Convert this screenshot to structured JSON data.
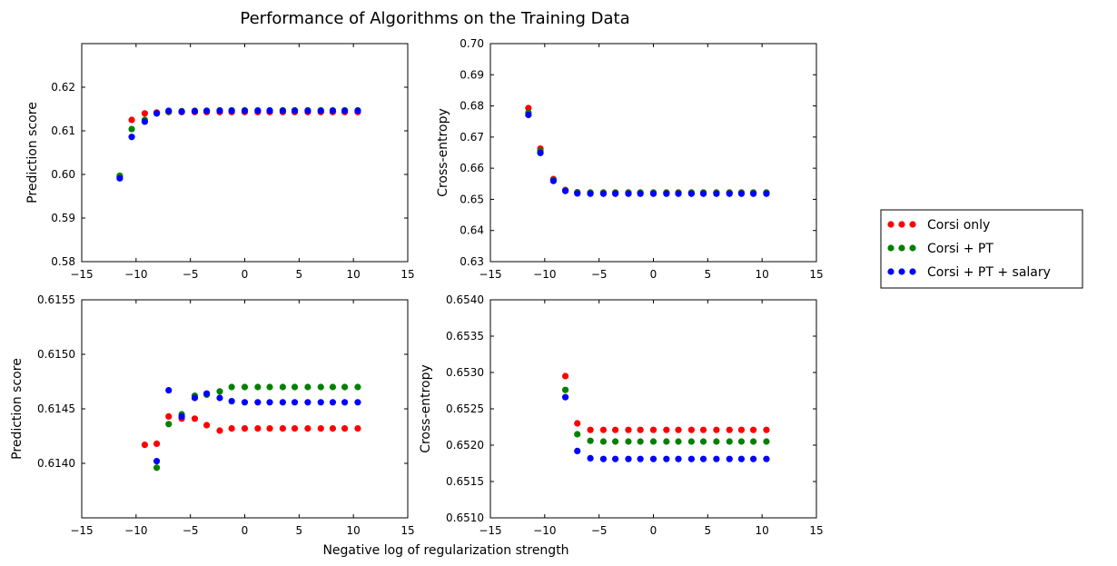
{
  "figure": {
    "title": "Performance of Algorithms on the Training Data",
    "shared_xlabel": "Negative log of regularization strength"
  },
  "legend": {
    "placement": "right, outside subplots",
    "items": [
      {
        "label": "Corsi only",
        "color": "#ff0000"
      },
      {
        "label": "Corsi + PT",
        "color": "#008000"
      },
      {
        "label": "Corsi + PT + salary",
        "color": "#0000ff"
      }
    ]
  },
  "chart_data": [
    {
      "type": "scatter",
      "position": "top-left",
      "ylabel": "Prediction score",
      "xlim": [
        -15,
        15
      ],
      "ylim": [
        0.58,
        0.63
      ],
      "xticks": [
        -15,
        -10,
        -5,
        0,
        5,
        10,
        15
      ],
      "xtick_labels": [
        "−15",
        "−10",
        "−5",
        "0",
        "5",
        "10",
        "15"
      ],
      "yticks": [
        0.58,
        0.59,
        0.6,
        0.61,
        0.62
      ],
      "ytick_labels": [
        "0.58",
        "0.59",
        "0.60",
        "0.61",
        "0.62"
      ],
      "series": [
        {
          "name": "Corsi only",
          "color": "#ff0000",
          "x": [
            -11.5,
            -10.4,
            -9.2,
            -8.1,
            -7.0,
            -5.8,
            -4.6,
            -3.5,
            -2.3,
            -1.2,
            0.0,
            1.2,
            2.3,
            3.5,
            4.6,
            5.8,
            7.0,
            8.1,
            9.2,
            10.4
          ],
          "y": [
            0.5995,
            0.6125,
            0.614,
            0.6142,
            0.6143,
            0.6143,
            0.6143,
            0.6143,
            0.6143,
            0.6143,
            0.6143,
            0.6143,
            0.6143,
            0.6143,
            0.6143,
            0.6143,
            0.6143,
            0.6143,
            0.6143,
            0.6143
          ]
        },
        {
          "name": "Corsi + PT",
          "color": "#008000",
          "x": [
            -11.5,
            -10.4,
            -9.2,
            -8.1,
            -7.0,
            -5.8,
            -4.6,
            -3.5,
            -2.3,
            -1.2,
            0.0,
            1.2,
            2.3,
            3.5,
            4.6,
            5.8,
            7.0,
            8.1,
            9.2,
            10.4
          ],
          "y": [
            0.5997,
            0.6104,
            0.6125,
            0.614,
            0.6144,
            0.6145,
            0.6146,
            0.6146,
            0.6147,
            0.6147,
            0.6147,
            0.6147,
            0.6147,
            0.6147,
            0.6147,
            0.6147,
            0.6147,
            0.6147,
            0.6147,
            0.6147
          ]
        },
        {
          "name": "Corsi + PT + salary",
          "color": "#0000ff",
          "x": [
            -11.5,
            -10.4,
            -9.2,
            -8.1,
            -7.0,
            -5.8,
            -4.6,
            -3.5,
            -2.3,
            -1.2,
            0.0,
            1.2,
            2.3,
            3.5,
            4.6,
            5.8,
            7.0,
            8.1,
            9.2,
            10.4
          ],
          "y": [
            0.5991,
            0.6086,
            0.6121,
            0.614,
            0.6146,
            0.6144,
            0.6145,
            0.6146,
            0.6146,
            0.6146,
            0.6146,
            0.6146,
            0.6146,
            0.6146,
            0.6146,
            0.6146,
            0.6146,
            0.6146,
            0.6146,
            0.6146
          ]
        }
      ]
    },
    {
      "type": "scatter",
      "position": "top-right",
      "ylabel": "Cross-entropy",
      "xlim": [
        -15,
        15
      ],
      "ylim": [
        0.63,
        0.7
      ],
      "xticks": [
        -15,
        -10,
        -5,
        0,
        5,
        10,
        15
      ],
      "xtick_labels": [
        "−15",
        "−10",
        "−5",
        "0",
        "5",
        "10",
        "15"
      ],
      "yticks": [
        0.63,
        0.64,
        0.65,
        0.66,
        0.67,
        0.68,
        0.69,
        0.7
      ],
      "ytick_labels": [
        "0.63",
        "0.64",
        "0.65",
        "0.66",
        "0.67",
        "0.68",
        "0.69",
        "0.70"
      ],
      "series": [
        {
          "name": "Corsi only",
          "color": "#ff0000",
          "x": [
            -11.5,
            -10.4,
            -9.2,
            -8.1,
            -7.0,
            -5.8,
            -4.6,
            -3.5,
            -2.3,
            -1.2,
            0.0,
            1.2,
            2.3,
            3.5,
            4.6,
            5.8,
            7.0,
            8.1,
            9.2,
            10.4
          ],
          "y": [
            0.6793,
            0.6663,
            0.6565,
            0.653,
            0.6523,
            0.6522,
            0.6522,
            0.6522,
            0.6522,
            0.6522,
            0.6522,
            0.6522,
            0.6522,
            0.6522,
            0.6522,
            0.6522,
            0.6522,
            0.6522,
            0.6522,
            0.6522
          ]
        },
        {
          "name": "Corsi + PT",
          "color": "#008000",
          "x": [
            -11.5,
            -10.4,
            -9.2,
            -8.1,
            -7.0,
            -5.8,
            -4.6,
            -3.5,
            -2.3,
            -1.2,
            0.0,
            1.2,
            2.3,
            3.5,
            4.6,
            5.8,
            7.0,
            8.1,
            9.2,
            10.4
          ],
          "y": [
            0.6778,
            0.6655,
            0.6562,
            0.6528,
            0.6522,
            0.6521,
            0.6521,
            0.6521,
            0.6521,
            0.6521,
            0.6521,
            0.6521,
            0.6521,
            0.6521,
            0.6521,
            0.6521,
            0.6521,
            0.6521,
            0.6521,
            0.6521
          ]
        },
        {
          "name": "Corsi + PT + salary",
          "color": "#0000ff",
          "x": [
            -11.5,
            -10.4,
            -9.2,
            -8.1,
            -7.0,
            -5.8,
            -4.6,
            -3.5,
            -2.3,
            -1.2,
            0.0,
            1.2,
            2.3,
            3.5,
            4.6,
            5.8,
            7.0,
            8.1,
            9.2,
            10.4
          ],
          "y": [
            0.6771,
            0.6649,
            0.6559,
            0.6527,
            0.6519,
            0.6518,
            0.6518,
            0.6518,
            0.6518,
            0.6518,
            0.6518,
            0.6518,
            0.6518,
            0.6518,
            0.6518,
            0.6518,
            0.6518,
            0.6518,
            0.6518,
            0.6518
          ]
        }
      ]
    },
    {
      "type": "scatter",
      "position": "bottom-left",
      "ylabel": "Prediction score",
      "xlim": [
        -15,
        15
      ],
      "ylim": [
        0.6135,
        0.6155
      ],
      "xticks": [
        -15,
        -10,
        -5,
        0,
        5,
        10,
        15
      ],
      "xtick_labels": [
        "−15",
        "−10",
        "−5",
        "0",
        "5",
        "10",
        "15"
      ],
      "yticks": [
        0.614,
        0.6145,
        0.615,
        0.6155
      ],
      "ytick_labels": [
        "0.6140",
        "0.6145",
        "0.6150",
        "0.6155"
      ],
      "series": [
        {
          "name": "Corsi only",
          "color": "#ff0000",
          "x": [
            -9.2,
            -8.1,
            -7.0,
            -5.8,
            -4.6,
            -3.5,
            -2.3,
            -1.2,
            0.0,
            1.2,
            2.3,
            3.5,
            4.6,
            5.8,
            7.0,
            8.1,
            9.2,
            10.4
          ],
          "y": [
            0.61417,
            0.61418,
            0.61443,
            0.61441,
            0.61441,
            0.61435,
            0.6143,
            0.61432,
            0.61432,
            0.61432,
            0.61432,
            0.61432,
            0.61432,
            0.61432,
            0.61432,
            0.61432,
            0.61432,
            0.61432
          ]
        },
        {
          "name": "Corsi + PT",
          "color": "#008000",
          "x": [
            -8.1,
            -7.0,
            -5.8,
            -4.6,
            -3.5,
            -2.3,
            -1.2,
            0.0,
            1.2,
            2.3,
            3.5,
            4.6,
            5.8,
            7.0,
            8.1,
            9.2,
            10.4
          ],
          "y": [
            0.61396,
            0.61436,
            0.61445,
            0.61462,
            0.61463,
            0.61466,
            0.6147,
            0.6147,
            0.6147,
            0.6147,
            0.6147,
            0.6147,
            0.6147,
            0.6147,
            0.6147,
            0.6147,
            0.6147
          ]
        },
        {
          "name": "Corsi + PT + salary",
          "color": "#0000ff",
          "x": [
            -8.1,
            -7.0,
            -5.8,
            -4.6,
            -3.5,
            -2.3,
            -1.2,
            0.0,
            1.2,
            2.3,
            3.5,
            4.6,
            5.8,
            7.0,
            8.1,
            9.2,
            10.4
          ],
          "y": [
            0.61402,
            0.61467,
            0.61443,
            0.6146,
            0.61464,
            0.6146,
            0.61457,
            0.61456,
            0.61456,
            0.61456,
            0.61456,
            0.61456,
            0.61456,
            0.61456,
            0.61456,
            0.61456,
            0.61456
          ]
        }
      ]
    },
    {
      "type": "scatter",
      "position": "bottom-right",
      "ylabel": "Cross-entropy",
      "xlim": [
        -15,
        15
      ],
      "ylim": [
        0.651,
        0.654
      ],
      "xticks": [
        -15,
        -10,
        -5,
        0,
        5,
        10,
        15
      ],
      "xtick_labels": [
        "−15",
        "−10",
        "−5",
        "0",
        "5",
        "10",
        "15"
      ],
      "yticks": [
        0.651,
        0.6515,
        0.652,
        0.6525,
        0.653,
        0.6535,
        0.654
      ],
      "ytick_labels": [
        "0.6510",
        "0.6515",
        "0.6520",
        "0.6525",
        "0.6530",
        "0.6535",
        "0.6540"
      ],
      "series": [
        {
          "name": "Corsi only",
          "color": "#ff0000",
          "x": [
            -8.1,
            -7.0,
            -5.8,
            -4.6,
            -3.5,
            -2.3,
            -1.2,
            0.0,
            1.2,
            2.3,
            3.5,
            4.6,
            5.8,
            7.0,
            8.1,
            9.2,
            10.4
          ],
          "y": [
            0.65295,
            0.6523,
            0.65221,
            0.65221,
            0.65221,
            0.65221,
            0.65221,
            0.65221,
            0.65221,
            0.65221,
            0.65221,
            0.65221,
            0.65221,
            0.65221,
            0.65221,
            0.65221,
            0.65221
          ]
        },
        {
          "name": "Corsi + PT",
          "color": "#008000",
          "x": [
            -8.1,
            -7.0,
            -5.8,
            -4.6,
            -3.5,
            -2.3,
            -1.2,
            0.0,
            1.2,
            2.3,
            3.5,
            4.6,
            5.8,
            7.0,
            8.1,
            9.2,
            10.4
          ],
          "y": [
            0.65276,
            0.65215,
            0.65206,
            0.65205,
            0.65205,
            0.65205,
            0.65205,
            0.65205,
            0.65205,
            0.65205,
            0.65205,
            0.65205,
            0.65205,
            0.65205,
            0.65205,
            0.65205,
            0.65205
          ]
        },
        {
          "name": "Corsi + PT + salary",
          "color": "#0000ff",
          "x": [
            -8.1,
            -7.0,
            -5.8,
            -4.6,
            -3.5,
            -2.3,
            -1.2,
            0.0,
            1.2,
            2.3,
            3.5,
            4.6,
            5.8,
            7.0,
            8.1,
            9.2,
            10.4
          ],
          "y": [
            0.65266,
            0.65192,
            0.65182,
            0.65181,
            0.65181,
            0.65181,
            0.65181,
            0.65181,
            0.65181,
            0.65181,
            0.65181,
            0.65181,
            0.65181,
            0.65181,
            0.65181,
            0.65181,
            0.65181
          ]
        }
      ]
    }
  ]
}
